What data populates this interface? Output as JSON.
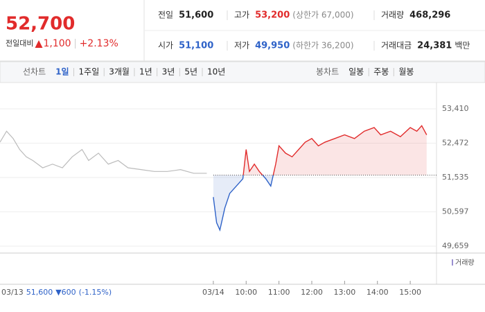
{
  "quote": {
    "price": "52,700",
    "change_label": "전일대비",
    "change": "1,100",
    "change_pct": "+2.13%"
  },
  "stats": [
    {
      "label": "전일",
      "value": "51,600"
    },
    {
      "label": "고가",
      "value": "53,200",
      "extra": "(상한가 67,000)",
      "color": "#e12b2b"
    },
    {
      "label": "거래량",
      "value": "468,296"
    },
    {
      "label": "시가",
      "value": "51,100",
      "color": "#2e62c8"
    },
    {
      "label": "저가",
      "value": "49,950",
      "extra": "(하한가 36,200)",
      "color": "#2e62c8"
    },
    {
      "label": "거래대금",
      "value": "24,381",
      "extra": "백만"
    }
  ],
  "tabs": {
    "line_label": "선차트",
    "periods": [
      "1일",
      "1주일",
      "3개월",
      "1년",
      "3년",
      "5년",
      "10년"
    ],
    "active": 0,
    "candle_label": "봉차트",
    "candles": [
      "일봉",
      "주봉",
      "월봉"
    ]
  },
  "footer": {
    "date": "03/13",
    "close": "51,600",
    "change": "▼600",
    "change_pct": "(-1.15%)"
  },
  "chart_data": {
    "type": "line",
    "xlim": [
      2.5,
      15.8
    ],
    "ylim": [
      49470,
      53960
    ],
    "yticks": [
      {
        "value": 53410,
        "label": "53,410"
      },
      {
        "value": 52472,
        "label": "52,472"
      },
      {
        "value": 51535,
        "label": "51,535"
      },
      {
        "value": 50597,
        "label": "50,597"
      },
      {
        "value": 49659,
        "label": "49,659"
      }
    ],
    "xticks": [
      {
        "value": 9,
        "label": "03/14"
      },
      {
        "value": 10,
        "label": "10:00"
      },
      {
        "value": 11,
        "label": "11:00"
      },
      {
        "value": 12,
        "label": "12:00"
      },
      {
        "value": 13,
        "label": "13:00"
      },
      {
        "value": 14,
        "label": "14:00"
      },
      {
        "value": 15,
        "label": "15:00"
      }
    ],
    "reference_line": 51600,
    "up_color": "#e12b2b",
    "down_color": "#2e62c8",
    "legend": "거래량",
    "series": [
      {
        "x": [
          2.5,
          2.7,
          2.9,
          3.1,
          3.3,
          3.5,
          3.8,
          4.1,
          4.4,
          4.7,
          5.0,
          5.2,
          5.5,
          5.8,
          6.1,
          6.4,
          6.8,
          7.2,
          7.6,
          8.0,
          8.4,
          8.8
        ],
        "values": [
          52500,
          52800,
          52600,
          52300,
          52100,
          52000,
          51800,
          51900,
          51800,
          52100,
          52300,
          52000,
          52200,
          51900,
          52000,
          51800,
          51750,
          51700,
          51700,
          51750,
          51650,
          51650
        ],
        "color": "#bbbbbb"
      },
      {
        "x": [
          9.0,
          9.1,
          9.2,
          9.35,
          9.5,
          9.7,
          9.9,
          10.0,
          10.1,
          10.25,
          10.4,
          10.6,
          10.75,
          10.9,
          11.0,
          11.2,
          11.4,
          11.6,
          11.8,
          12.0,
          12.2,
          12.4,
          12.7,
          13.0,
          13.3,
          13.6,
          13.9,
          14.1,
          14.4,
          14.7,
          15.0,
          15.2,
          15.35,
          15.5
        ],
        "values": [
          51000,
          50300,
          50100,
          50700,
          51100,
          51300,
          51500,
          52300,
          51700,
          51900,
          51700,
          51500,
          51300,
          51900,
          52400,
          52200,
          52100,
          52300,
          52500,
          52600,
          52400,
          52500,
          52600,
          52700,
          52600,
          52800,
          52900,
          52700,
          52800,
          52650,
          52900,
          52800,
          52950,
          52700
        ]
      }
    ]
  }
}
